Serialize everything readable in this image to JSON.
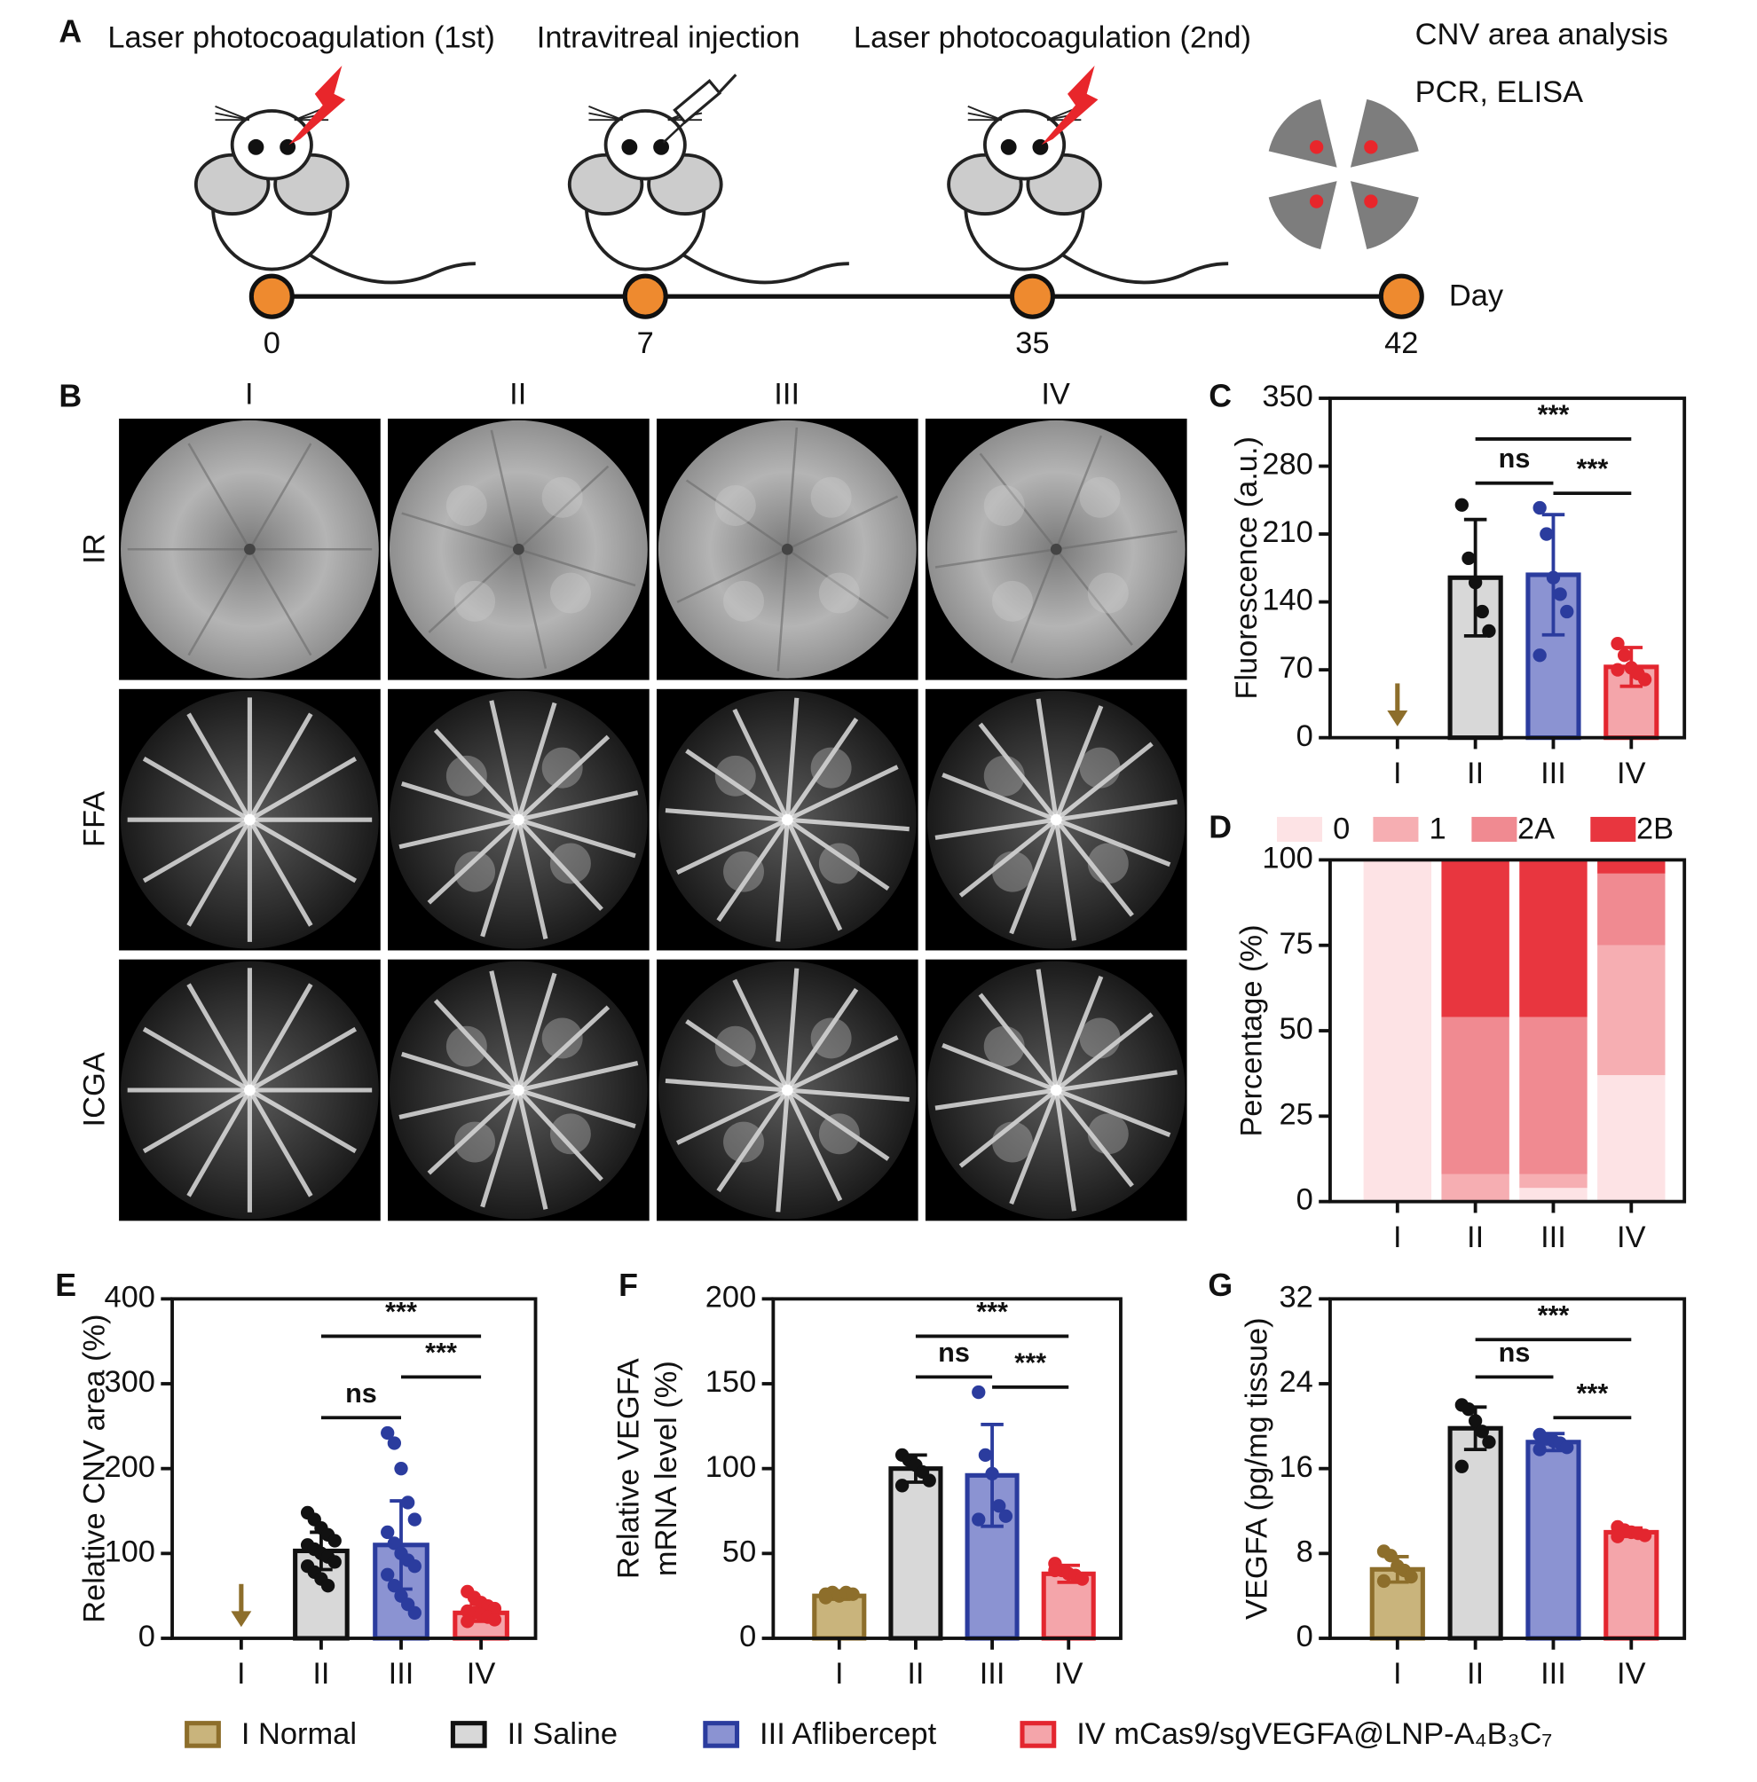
{
  "timeline": {
    "panel": "A",
    "events": [
      "Laser photocoagulation (1st)",
      "Intravitreal injection",
      "Laser photocoagulation (2nd)"
    ],
    "analysis": [
      "CNV area analysis",
      "PCR,  ELISA"
    ],
    "days": [
      "0",
      "7",
      "35",
      "42"
    ],
    "day_label": "Day"
  },
  "images": {
    "panel": "B",
    "columns": [
      "I",
      "II",
      "III",
      "IV"
    ],
    "rows": [
      "IR",
      "FFA",
      "ICGA"
    ]
  },
  "legend": {
    "items": [
      {
        "name": "I Normal",
        "fill": "#c9b47c",
        "stroke": "#8d6e2b"
      },
      {
        "name": "II Saline",
        "fill": "#d8d8d8",
        "stroke": "#111111"
      },
      {
        "name": "III Aflibercept",
        "fill": "#8b93d2",
        "stroke": "#2b3c9e"
      },
      {
        "name": "IV mCas9/sgVEGFA@LNP-A₄B₃C₇",
        "fill": "#f4a5aa",
        "stroke": "#e3262f"
      }
    ]
  },
  "chart_data": [
    {
      "type": "bar",
      "panel": "C",
      "ylabel": [
        "Fluorescence (a.u.)"
      ],
      "categories": [
        "I",
        "II",
        "III",
        "IV"
      ],
      "values": [
        null,
        165,
        168,
        73
      ],
      "errors": [
        null,
        60,
        62,
        20
      ],
      "points": [
        [],
        [
          240,
          185,
          160,
          130,
          110
        ],
        [
          237,
          210,
          165,
          148,
          130,
          85
        ],
        [
          97,
          85,
          72,
          66,
          60,
          70
        ]
      ],
      "ylim": [
        0,
        350
      ],
      "yticks": [
        0,
        70,
        140,
        210,
        280,
        350
      ],
      "annotations": [
        "***",
        "ns",
        "***"
      ]
    },
    {
      "type": "stacked_bar",
      "panel": "D",
      "ylabel": [
        "Percentage (%)"
      ],
      "categories": [
        "I",
        "II",
        "III",
        "IV"
      ],
      "series": [
        {
          "name": "0",
          "color": "#fde3e5",
          "values": [
            100,
            0,
            4,
            37
          ]
        },
        {
          "name": "1",
          "color": "#f6aeb2",
          "values": [
            0,
            8,
            4,
            38
          ]
        },
        {
          "name": "2A",
          "color": "#f08a91",
          "values": [
            0,
            46,
            46,
            21
          ]
        },
        {
          "name": "2B",
          "color": "#e8363f",
          "values": [
            0,
            46,
            46,
            4
          ]
        }
      ],
      "ylim": [
        0,
        100
      ],
      "yticks": [
        0,
        25,
        50,
        75,
        100
      ]
    },
    {
      "type": "bar",
      "panel": "E",
      "ylabel": [
        "Relative CNV area (%)"
      ],
      "categories": [
        "I",
        "II",
        "III",
        "IV"
      ],
      "values": [
        null,
        103,
        110,
        30
      ],
      "errors": [
        null,
        22,
        52,
        10
      ],
      "points": [
        [],
        [
          148,
          140,
          130,
          122,
          115,
          110,
          105,
          100,
          96,
          90,
          85,
          78,
          70,
          62
        ],
        [
          242,
          230,
          200,
          160,
          140,
          125,
          112,
          100,
          92,
          85,
          75,
          62,
          50,
          40,
          30
        ],
        [
          55,
          48,
          42,
          38,
          35,
          32,
          30,
          28,
          25,
          22,
          20
        ]
      ],
      "ylim": [
        0,
        400
      ],
      "yticks": [
        0,
        100,
        200,
        300,
        400
      ],
      "annotations": [
        "***",
        "***",
        "ns"
      ]
    },
    {
      "type": "bar",
      "panel": "F",
      "ylabel": [
        "Relative VEGFA",
        "mRNA level (%)"
      ],
      "categories": [
        "I",
        "II",
        "III",
        "IV"
      ],
      "values": [
        25,
        100,
        96,
        38
      ],
      "errors": [
        2,
        8,
        30,
        5
      ],
      "points": [
        [
          26,
          27,
          25,
          27,
          26,
          24
        ],
        [
          108,
          105,
          102,
          98,
          93,
          90
        ],
        [
          145,
          108,
          97,
          78,
          72,
          70
        ],
        [
          44,
          40,
          38,
          37,
          35,
          40
        ]
      ],
      "ylim": [
        0,
        200
      ],
      "yticks": [
        0,
        50,
        100,
        150,
        200
      ],
      "annotations": [
        "***",
        "ns",
        "***"
      ]
    },
    {
      "type": "bar",
      "panel": "G",
      "ylabel": [
        "VEGFA (pg/mg tissue)"
      ],
      "categories": [
        "I",
        "II",
        "III",
        "IV"
      ],
      "values": [
        6.5,
        19.8,
        18.5,
        10
      ],
      "errors": [
        1.2,
        2,
        0.8,
        0.4
      ],
      "points": [
        [
          8.2,
          7.8,
          6.8,
          6.4,
          5.8,
          5.4
        ],
        [
          22,
          21.6,
          20.5,
          19.5,
          18.5,
          16.2
        ],
        [
          19.2,
          18.8,
          18.6,
          18.4,
          18,
          17.8
        ],
        [
          10.5,
          10.2,
          10,
          9.9,
          9.7,
          9.6
        ]
      ],
      "ylim": [
        0,
        32
      ],
      "yticks": [
        0,
        8,
        16,
        24,
        32
      ],
      "annotations": [
        "***",
        "ns",
        "***"
      ]
    }
  ]
}
